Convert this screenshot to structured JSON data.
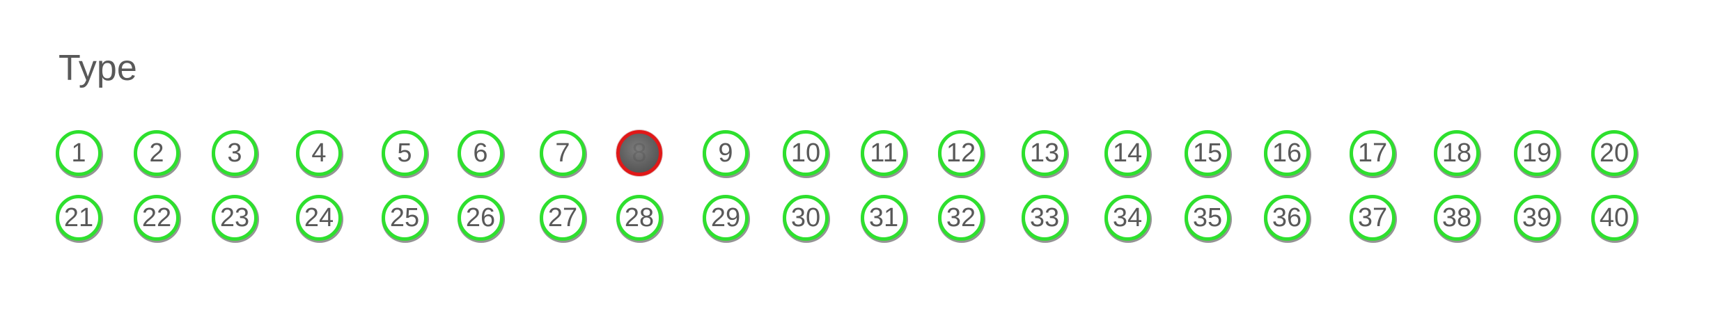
{
  "title": "Type",
  "colors": {
    "ring": "#2ee02e",
    "selected_ring": "#e01818",
    "text": "#595959"
  },
  "items": [
    {
      "label": "1"
    },
    {
      "label": "2"
    },
    {
      "label": "3"
    },
    {
      "label": "4"
    },
    {
      "label": "5"
    },
    {
      "label": "6"
    },
    {
      "label": "7"
    },
    {
      "label": "8",
      "selected": true
    },
    {
      "label": "9"
    },
    {
      "label": "10"
    },
    {
      "label": "11"
    },
    {
      "label": "12"
    },
    {
      "label": "13"
    },
    {
      "label": "14"
    },
    {
      "label": "15"
    },
    {
      "label": "16"
    },
    {
      "label": "17"
    },
    {
      "label": "18"
    },
    {
      "label": "19"
    },
    {
      "label": "20"
    },
    {
      "label": "21"
    },
    {
      "label": "22"
    },
    {
      "label": "23"
    },
    {
      "label": "24"
    },
    {
      "label": "25"
    },
    {
      "label": "26"
    },
    {
      "label": "27"
    },
    {
      "label": "28"
    },
    {
      "label": "29"
    },
    {
      "label": "30"
    },
    {
      "label": "31"
    },
    {
      "label": "32"
    },
    {
      "label": "33"
    },
    {
      "label": "34"
    },
    {
      "label": "35"
    },
    {
      "label": "36"
    },
    {
      "label": "37"
    },
    {
      "label": "38"
    },
    {
      "label": "39"
    },
    {
      "label": "40"
    }
  ]
}
